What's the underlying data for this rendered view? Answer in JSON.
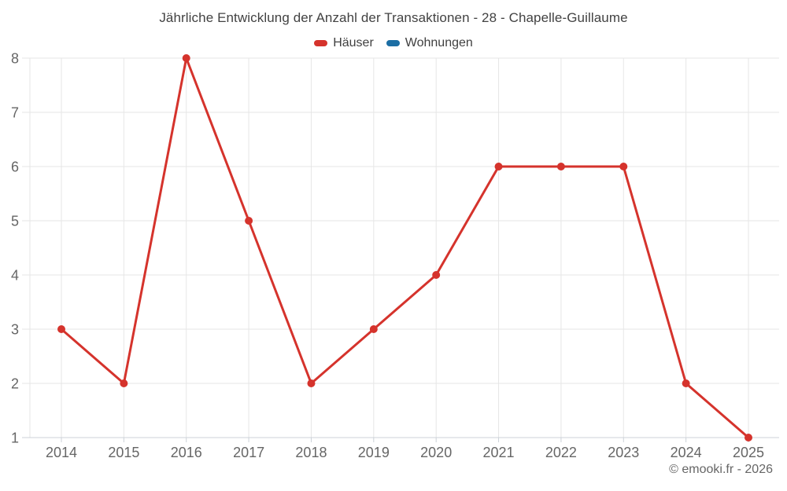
{
  "chart_data": {
    "type": "line",
    "title": "Jährliche Entwicklung der Anzahl der Transaktionen - 28 - Chapelle-Guillaume",
    "categories": [
      "2014",
      "2015",
      "2016",
      "2017",
      "2018",
      "2019",
      "2020",
      "2021",
      "2022",
      "2023",
      "2024",
      "2025"
    ],
    "series": [
      {
        "name": "Häuser",
        "color": "#d5332c",
        "values": [
          3,
          2,
          8,
          5,
          2,
          3,
          4,
          6,
          6,
          6,
          2,
          1
        ]
      },
      {
        "name": "Wohnungen",
        "color": "#1c6ea4",
        "values": []
      }
    ],
    "xlabel": "",
    "ylabel": "",
    "ylim": [
      1,
      8
    ],
    "yticks": [
      1,
      2,
      3,
      4,
      5,
      6,
      7,
      8
    ],
    "grid": true,
    "legend_position": "top-center",
    "credit": "© emooki.fr - 2026",
    "colors": {
      "gridline": "#e6e6e6",
      "axis_line": "#ccd2d8",
      "tick": "#ccd2d8",
      "axis_label": "#666666",
      "title": "#424242",
      "legend_text": "#404040"
    }
  }
}
